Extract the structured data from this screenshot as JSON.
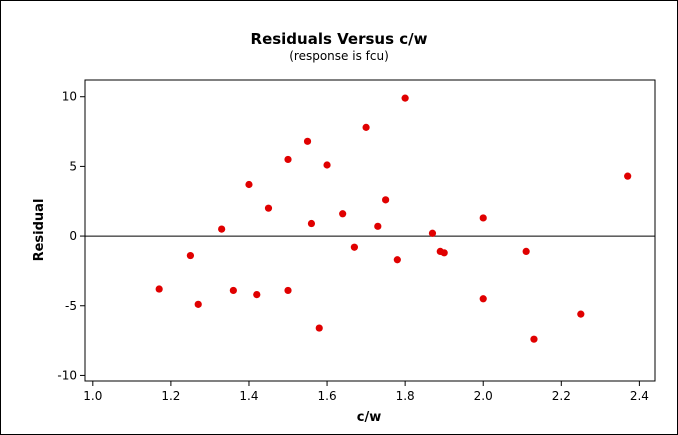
{
  "chart_data": {
    "type": "scatter",
    "title": "Residuals Versus c/w",
    "subtitle": "(response is fcu)",
    "xlabel": "c/w",
    "ylabel": "Residual",
    "xlim": [
      0.98,
      2.44
    ],
    "ylim": [
      -10.4,
      11.2
    ],
    "xticks": [
      "1.0",
      "1.2",
      "1.4",
      "1.6",
      "1.8",
      "2.0",
      "2.2",
      "2.4"
    ],
    "yticks": [
      "10",
      "5",
      "0",
      "-5",
      "-10"
    ],
    "reference_line_y": 0,
    "grid": false,
    "marker_color": "#e00000",
    "points": [
      {
        "x": 1.17,
        "y": -3.8
      },
      {
        "x": 1.25,
        "y": -1.4
      },
      {
        "x": 1.27,
        "y": -4.9
      },
      {
        "x": 1.33,
        "y": 0.5
      },
      {
        "x": 1.36,
        "y": -3.9
      },
      {
        "x": 1.4,
        "y": 3.7
      },
      {
        "x": 1.42,
        "y": -4.2
      },
      {
        "x": 1.45,
        "y": 2.0
      },
      {
        "x": 1.5,
        "y": 5.5
      },
      {
        "x": 1.5,
        "y": -3.9
      },
      {
        "x": 1.55,
        "y": 6.8
      },
      {
        "x": 1.56,
        "y": 0.9
      },
      {
        "x": 1.58,
        "y": -6.6
      },
      {
        "x": 1.6,
        "y": 5.1
      },
      {
        "x": 1.64,
        "y": 1.6
      },
      {
        "x": 1.67,
        "y": -0.8
      },
      {
        "x": 1.7,
        "y": 7.8
      },
      {
        "x": 1.73,
        "y": 0.7
      },
      {
        "x": 1.75,
        "y": 2.6
      },
      {
        "x": 1.78,
        "y": -1.7
      },
      {
        "x": 1.8,
        "y": 9.9
      },
      {
        "x": 1.87,
        "y": 0.2
      },
      {
        "x": 1.89,
        "y": -1.1
      },
      {
        "x": 1.9,
        "y": -1.2
      },
      {
        "x": 2.0,
        "y": 1.3
      },
      {
        "x": 2.0,
        "y": -4.5
      },
      {
        "x": 2.11,
        "y": -1.1
      },
      {
        "x": 2.13,
        "y": -7.4
      },
      {
        "x": 2.25,
        "y": -5.6
      },
      {
        "x": 2.37,
        "y": 4.3
      }
    ]
  }
}
